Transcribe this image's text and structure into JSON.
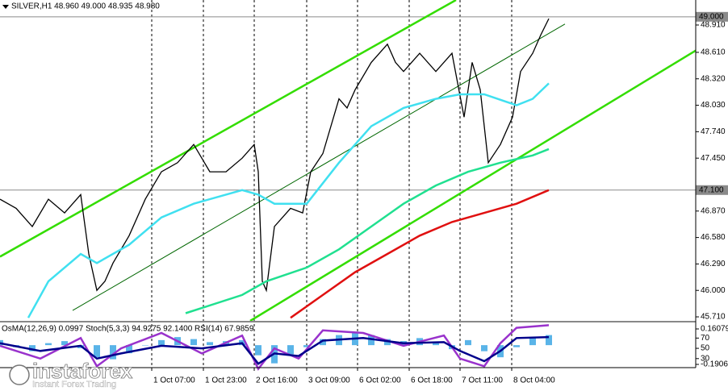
{
  "chart_data": [
    {
      "type": "line",
      "title": "SILVER,H1  48.960 49.000 48.935 48.980",
      "xlim": [
        0,
        86.2
      ],
      "ylim": [
        45.666,
        49.184
      ],
      "xticks": [
        {
          "value": 18.8,
          "label": "1 Oct 07:00"
        },
        {
          "value": 25.2,
          "label": "1 Oct 23:00"
        },
        {
          "value": 31.5,
          "label": "2 Oct 16:00"
        },
        {
          "value": 38.0,
          "label": "3 Oct 09:00"
        },
        {
          "value": 44.3,
          "label": "6 Oct 02:00"
        },
        {
          "value": 50.7,
          "label": "6 Oct 18:00"
        },
        {
          "value": 57.0,
          "label": "7 Oct 11:00"
        },
        {
          "value": 63.4,
          "label": "8 Oct 04:00"
        }
      ],
      "yticks": [
        {
          "value": 48.91,
          "label": "48.910"
        },
        {
          "value": 48.61,
          "label": "48.610"
        },
        {
          "value": 48.32,
          "label": "48.320"
        },
        {
          "value": 48.03,
          "label": "48.030"
        },
        {
          "value": 47.74,
          "label": "47.740"
        },
        {
          "value": 47.45,
          "label": "47.450"
        },
        {
          "value": 46.87,
          "label": "46.870"
        },
        {
          "value": 46.58,
          "label": "46.580"
        },
        {
          "value": 46.29,
          "label": "46.290"
        },
        {
          "value": 46.0,
          "label": "46.000"
        },
        {
          "value": 45.71,
          "label": "45.710"
        }
      ],
      "grid": true,
      "price_levels": [
        {
          "value": 49.0,
          "label": "49.000"
        },
        {
          "value": 47.1,
          "label": "47.100"
        }
      ],
      "series": [
        {
          "color": "#000000",
          "x": [
            0,
            2,
            4,
            6,
            8,
            10,
            11,
            12,
            13,
            14,
            16,
            18,
            20,
            22,
            24,
            26,
            28,
            30,
            31.5,
            32,
            32.5,
            33,
            34,
            36,
            37.5,
            38.5,
            40,
            41,
            42,
            43,
            44,
            46,
            48,
            49,
            50,
            52,
            54,
            56,
            57.5,
            58.5,
            59.5,
            60.5,
            62,
            63.5,
            64.5,
            66,
            67,
            68
          ],
          "values": [
            47.0,
            46.9,
            46.7,
            47.0,
            46.85,
            47.05,
            46.4,
            46.0,
            46.1,
            46.3,
            46.6,
            47.0,
            47.3,
            47.4,
            47.6,
            47.3,
            47.3,
            47.45,
            47.6,
            47.3,
            46.1,
            46.0,
            46.7,
            46.9,
            46.85,
            47.3,
            47.5,
            47.8,
            48.1,
            48.0,
            48.2,
            48.5,
            48.7,
            48.5,
            48.4,
            48.6,
            48.4,
            48.6,
            47.9,
            48.5,
            48.2,
            47.4,
            47.6,
            47.9,
            48.4,
            48.6,
            48.8,
            48.98
          ]
        },
        {
          "color": "#40e0f0",
          "x": [
            3.5,
            6,
            10,
            12,
            16,
            20,
            24,
            30,
            32,
            34,
            38,
            42,
            46,
            50,
            54,
            57,
            60,
            64,
            66,
            68
          ],
          "values": [
            45.7,
            46.1,
            46.4,
            46.3,
            46.5,
            46.8,
            46.95,
            47.1,
            47.05,
            46.95,
            46.95,
            47.4,
            47.8,
            48.0,
            48.1,
            48.15,
            48.15,
            48.03,
            48.1,
            48.27
          ]
        },
        {
          "color": "#20e090",
          "x": [
            23,
            30,
            33,
            38,
            42,
            46,
            50,
            54,
            58,
            62,
            66,
            68
          ],
          "values": [
            45.75,
            45.95,
            46.1,
            46.25,
            46.45,
            46.7,
            46.95,
            47.15,
            47.3,
            47.4,
            47.48,
            47.55
          ]
        },
        {
          "color": "#e01010",
          "x": [
            36,
            40,
            44,
            48,
            52,
            56,
            60,
            64,
            68
          ],
          "values": [
            45.7,
            45.95,
            46.2,
            46.4,
            46.6,
            46.75,
            46.85,
            46.95,
            47.1
          ]
        }
      ],
      "trendlines": [
        {
          "color": "#33dd00",
          "x": [
            0,
            56.5
          ],
          "y": [
            46.37,
            49.184
          ]
        },
        {
          "color": "#33dd00",
          "x": [
            31,
            86.2
          ],
          "y": [
            45.666,
            48.63
          ]
        },
        {
          "color": "#006600",
          "x": [
            9,
            70
          ],
          "y": [
            45.78,
            48.92
          ]
        }
      ]
    },
    {
      "type": "line",
      "title": "OsMA(12,26,9) 0.0997 Stoch(5,3,3) 94.9275 92.1400 RSI(14) 67.9859",
      "xlim": [
        0,
        86.2
      ],
      "ylim": [
        12.4,
        100.4
      ],
      "yticks": [
        70,
        50,
        30
      ],
      "y2lim": [
        -0.19062,
        0.16079
      ],
      "y2ticks": [
        0.16079,
        -0.19062
      ],
      "series": [
        {
          "color": "#5ab4e8",
          "axis": "y2",
          "type": "bar",
          "x": [
            0,
            2,
            4,
            6,
            8,
            10,
            12,
            14,
            16,
            18,
            20,
            22,
            24,
            26,
            28,
            30,
            32,
            34,
            36,
            38,
            40,
            42,
            44,
            46,
            48,
            50,
            52,
            54,
            56,
            58,
            60,
            62,
            64,
            66,
            68
          ],
          "values": [
            0.05,
            -0.02,
            -0.06,
            0.02,
            0.04,
            -0.03,
            -0.12,
            -0.14,
            -0.08,
            0.0,
            0.05,
            0.08,
            0.06,
            0.03,
            0.04,
            0.05,
            -0.1,
            -0.18,
            -0.09,
            -0.02,
            0.06,
            0.1,
            0.12,
            0.1,
            0.06,
            0.04,
            0.07,
            0.02,
            -0.04,
            0.05,
            -0.06,
            -0.12,
            -0.02,
            0.08,
            0.1
          ]
        },
        {
          "color": "#9932cc",
          "x": [
            0,
            5,
            10,
            12,
            15,
            20,
            25,
            30,
            32,
            34,
            37,
            40,
            45,
            50,
            55,
            57,
            60,
            62,
            64,
            68
          ],
          "values": [
            55,
            30,
            70,
            15,
            50,
            80,
            40,
            75,
            10,
            50,
            30,
            85,
            80,
            55,
            75,
            30,
            15,
            60,
            90,
            95
          ]
        },
        {
          "color": "#00008b",
          "x": [
            0,
            5,
            10,
            12,
            15,
            20,
            25,
            30,
            32,
            34,
            37,
            40,
            45,
            50,
            55,
            57,
            60,
            62,
            64,
            68
          ],
          "values": [
            60,
            45,
            55,
            30,
            40,
            55,
            50,
            60,
            20,
            40,
            35,
            65,
            70,
            60,
            62,
            45,
            25,
            45,
            70,
            72
          ]
        }
      ]
    }
  ],
  "logo": {
    "name": "instaforex",
    "tagline": "Instant Forex Trading"
  }
}
